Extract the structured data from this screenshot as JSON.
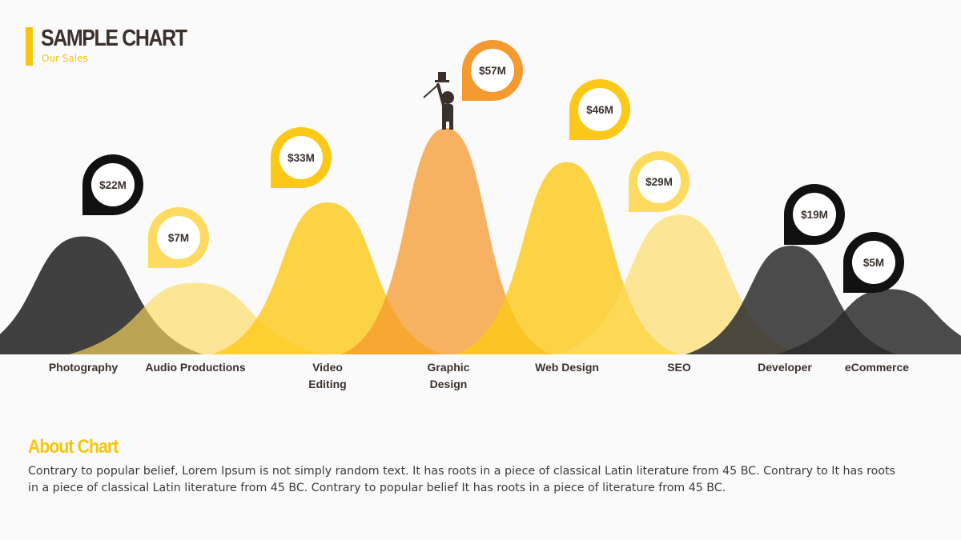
{
  "header": {
    "title": "SAMPLE CHART",
    "subtitle": "Our Sales"
  },
  "about": {
    "title": "About Chart",
    "text": "Contrary to popular belief, Lorem Ipsum is not simply random text. It has roots in a piece of classical Latin literature from 45 BC. Contrary to It has roots in a piece of classical Latin literature from 45 BC. Contrary to popular belief It has roots in a piece of literature from 45 BC."
  },
  "colors": {
    "accent": "#f7c60c",
    "dark": "#3b302c",
    "black_fill": "#2b2b2b",
    "yellow": "#fcc918",
    "light_yellow": "#fddb60",
    "orange": "#f59a2e"
  },
  "icons": {
    "figure": "person-with-top-hat-icon"
  },
  "chart_data": {
    "type": "area",
    "title": "SAMPLE CHART",
    "subtitle": "Our Sales",
    "unit": "$M",
    "categories": [
      "Photography",
      "Audio Productions",
      "Video Editing",
      "Graphic Design",
      "Web Design",
      "SEO",
      "Developer",
      "eCommerce"
    ],
    "category_label_lines": [
      [
        "Photography"
      ],
      [
        "Audio Productions"
      ],
      [
        "Video",
        "Editing"
      ],
      [
        "Graphic",
        "Design"
      ],
      [
        "Web Design"
      ],
      [
        "SEO"
      ],
      [
        "Developer"
      ],
      [
        "eCommerce"
      ]
    ],
    "values": [
      22,
      7,
      33,
      57,
      46,
      29,
      19,
      5
    ],
    "value_labels": [
      "$22M",
      "$7M",
      "$33M",
      "$57M",
      "$46M",
      "$29M",
      "$19M",
      "$5M"
    ],
    "colors": [
      "#2b2b2b",
      "#fddb60",
      "#fcc918",
      "#f59a2e",
      "#fcc918",
      "#fddb60",
      "#2b2b2b",
      "#2b2b2b"
    ],
    "legend": "none",
    "grid": false
  }
}
